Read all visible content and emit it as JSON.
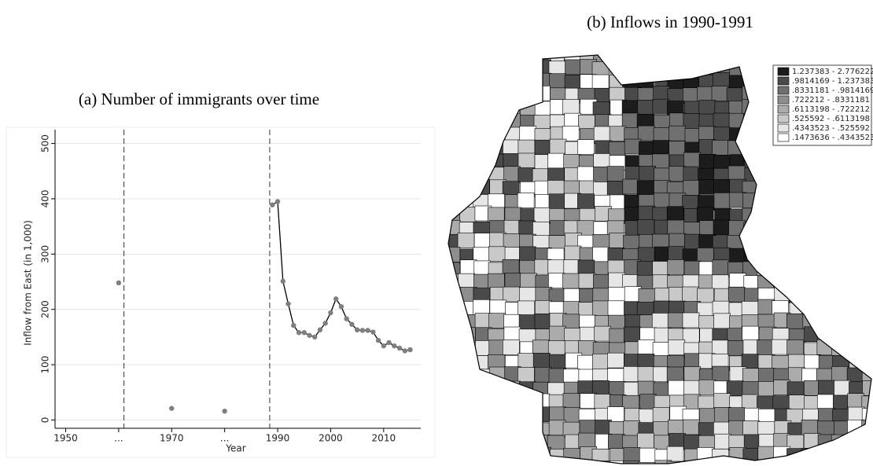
{
  "chart_data": [
    {
      "type": "line",
      "title": "(a) Number of immigrants over time",
      "x_label": "Year",
      "y_label": "Inflow from East (in 1,000)",
      "xlim": [
        1948,
        2017
      ],
      "ylim": [
        -15,
        525
      ],
      "xticks": [
        1950,
        {
          "value": 1960,
          "label": "..."
        },
        1970,
        {
          "value": 1980,
          "label": "..."
        },
        1990,
        2000,
        2010
      ],
      "yticks": [
        0,
        100,
        200,
        300,
        400,
        500
      ],
      "grid": true,
      "vlines": [
        1961,
        1988.5
      ],
      "series": [
        {
          "color": "#7f7f7f",
          "line": false,
          "x": [
            1960,
            1970,
            1980
          ],
          "values": [
            248,
            21,
            16
          ]
        },
        {
          "color": "#7f7f7f",
          "line_color": "#000000",
          "line": true,
          "x": [
            1989,
            1990,
            1991,
            1992,
            1993,
            1994,
            1995,
            1996,
            1997,
            1998,
            1999,
            2000,
            2001,
            2002,
            2003,
            2004,
            2005,
            2006,
            2007,
            2008,
            2009,
            2010,
            2011,
            2012,
            2013,
            2014,
            2015
          ],
          "values": [
            389,
            395,
            251,
            210,
            171,
            158,
            158,
            153,
            150,
            163,
            175,
            194,
            219,
            205,
            183,
            173,
            163,
            162,
            162,
            159,
            144,
            134,
            140,
            134,
            130,
            125,
            127
          ]
        }
      ]
    },
    {
      "type": "map",
      "title": "(b) Inflows in 1990-1991",
      "legend": [
        {
          "label": "1.237383 - 2.776222",
          "color": "#1c1c1c"
        },
        {
          "label": ".9814169 - 1.237383",
          "color": "#4a4a4a"
        },
        {
          "label": ".8331181 - .9814169",
          "color": "#707070"
        },
        {
          "label": ".722212 - .8331181",
          "color": "#8e8e8e"
        },
        {
          "label": ".6113198 - .722212",
          "color": "#ababab"
        },
        {
          "label": ".525592 - .6113198",
          "color": "#c9c9c9"
        },
        {
          "label": ".4343523 - .525592",
          "color": "#e6e6e6"
        },
        {
          "label": ".1473636 - .4343523",
          "color": "#ffffff"
        }
      ]
    }
  ]
}
